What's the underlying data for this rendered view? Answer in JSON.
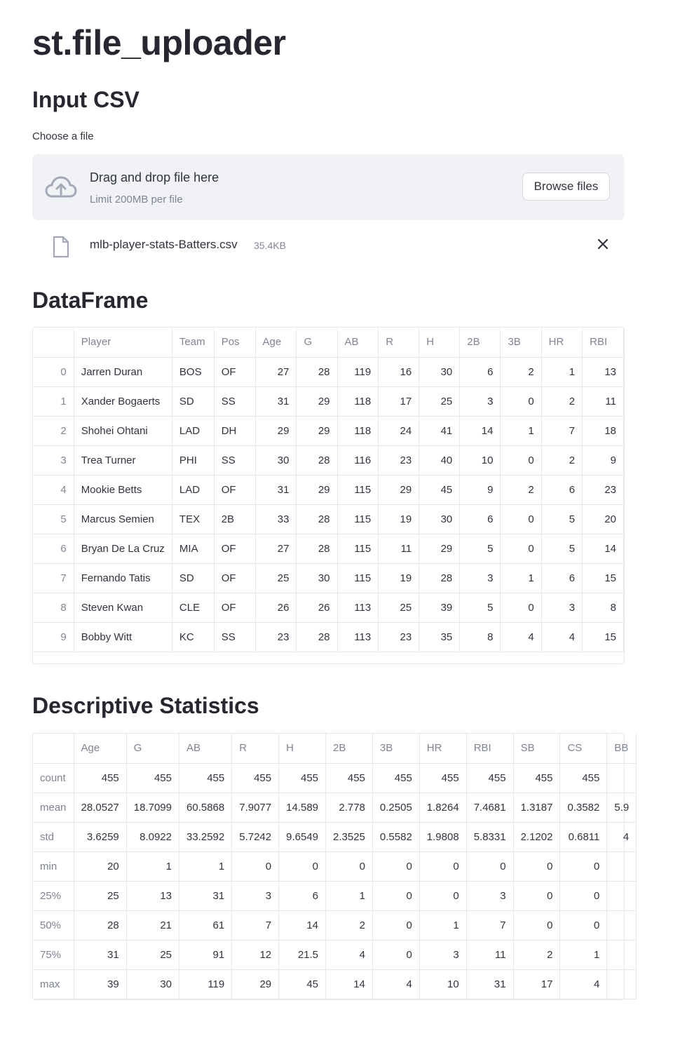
{
  "page_title": "st.file_uploader",
  "input_section": {
    "heading": "Input CSV",
    "label": "Choose a file",
    "dropzone_title": "Drag and drop file here",
    "dropzone_limit": "Limit 200MB per file",
    "browse_label": "Browse files"
  },
  "uploaded_file": {
    "name": "mlb-player-stats-Batters.csv",
    "size": "35.4KB"
  },
  "dataframe_section": {
    "heading": "DataFrame",
    "columns": [
      "",
      "Player",
      "Team",
      "Pos",
      "Age",
      "G",
      "AB",
      "R",
      "H",
      "2B",
      "3B",
      "HR",
      "RBI"
    ],
    "rows": [
      [
        "0",
        "Jarren Duran",
        "BOS",
        "OF",
        "27",
        "28",
        "119",
        "16",
        "30",
        "6",
        "2",
        "1",
        "13"
      ],
      [
        "1",
        "Xander Bogaerts",
        "SD",
        "SS",
        "31",
        "29",
        "118",
        "17",
        "25",
        "3",
        "0",
        "2",
        "11"
      ],
      [
        "2",
        "Shohei Ohtani",
        "LAD",
        "DH",
        "29",
        "29",
        "118",
        "24",
        "41",
        "14",
        "1",
        "7",
        "18"
      ],
      [
        "3",
        "Trea Turner",
        "PHI",
        "SS",
        "30",
        "28",
        "116",
        "23",
        "40",
        "10",
        "0",
        "2",
        "9"
      ],
      [
        "4",
        "Mookie Betts",
        "LAD",
        "OF",
        "31",
        "29",
        "115",
        "29",
        "45",
        "9",
        "2",
        "6",
        "23"
      ],
      [
        "5",
        "Marcus Semien",
        "TEX",
        "2B",
        "33",
        "28",
        "115",
        "19",
        "30",
        "6",
        "0",
        "5",
        "20"
      ],
      [
        "6",
        "Bryan De La Cruz",
        "MIA",
        "OF",
        "27",
        "28",
        "115",
        "11",
        "29",
        "5",
        "0",
        "5",
        "14"
      ],
      [
        "7",
        "Fernando Tatis",
        "SD",
        "OF",
        "25",
        "30",
        "115",
        "19",
        "28",
        "3",
        "1",
        "6",
        "15"
      ],
      [
        "8",
        "Steven Kwan",
        "CLE",
        "OF",
        "26",
        "26",
        "113",
        "25",
        "39",
        "5",
        "0",
        "3",
        "8"
      ],
      [
        "9",
        "Bobby Witt",
        "KC",
        "SS",
        "23",
        "28",
        "113",
        "23",
        "35",
        "8",
        "4",
        "4",
        "15"
      ]
    ]
  },
  "stats_section": {
    "heading": "Descriptive Statistics",
    "columns": [
      "",
      "Age",
      "G",
      "AB",
      "R",
      "H",
      "2B",
      "3B",
      "HR",
      "RBI",
      "SB",
      "CS",
      "BB"
    ],
    "rows": [
      [
        "count",
        "455",
        "455",
        "455",
        "455",
        "455",
        "455",
        "455",
        "455",
        "455",
        "455",
        "455",
        ""
      ],
      [
        "mean",
        "28.0527",
        "18.7099",
        "60.5868",
        "7.9077",
        "14.589",
        "2.778",
        "0.2505",
        "1.8264",
        "7.4681",
        "1.3187",
        "0.3582",
        "5.9"
      ],
      [
        "std",
        "3.6259",
        "8.0922",
        "33.2592",
        "5.7242",
        "9.6549",
        "2.3525",
        "0.5582",
        "1.9808",
        "5.8331",
        "2.1202",
        "0.6811",
        "4"
      ],
      [
        "min",
        "20",
        "1",
        "1",
        "0",
        "0",
        "0",
        "0",
        "0",
        "0",
        "0",
        "0",
        ""
      ],
      [
        "25%",
        "25",
        "13",
        "31",
        "3",
        "6",
        "1",
        "0",
        "0",
        "3",
        "0",
        "0",
        ""
      ],
      [
        "50%",
        "28",
        "21",
        "61",
        "7",
        "14",
        "2",
        "0",
        "1",
        "7",
        "0",
        "0",
        ""
      ],
      [
        "75%",
        "31",
        "25",
        "91",
        "12",
        "21.5",
        "4",
        "0",
        "3",
        "11",
        "2",
        "1",
        ""
      ],
      [
        "max",
        "39",
        "30",
        "119",
        "29",
        "45",
        "14",
        "4",
        "10",
        "31",
        "17",
        "4",
        ""
      ]
    ]
  },
  "icons": {
    "upload": "cloud-upload-icon",
    "file": "file-icon",
    "close": "close-icon"
  }
}
